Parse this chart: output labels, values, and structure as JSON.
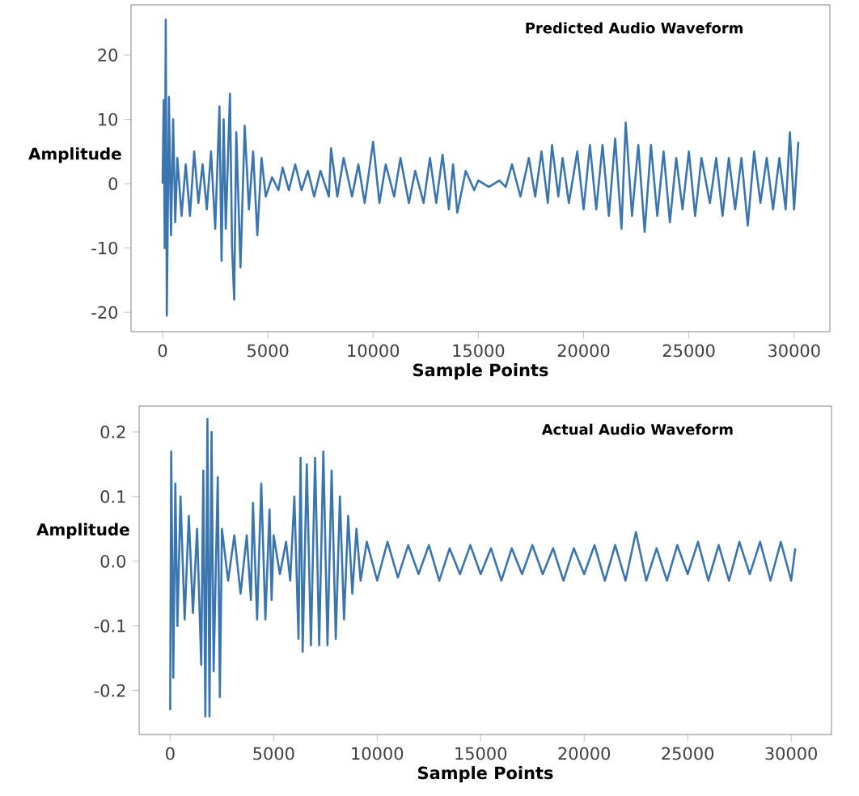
{
  "chart_data": [
    {
      "type": "line",
      "title": "Predicted Audio Waveform",
      "xlabel": "Sample Points",
      "ylabel": "Amplitude",
      "color": "#3a75af",
      "xlim": [
        -1500,
        31700
      ],
      "ylim": [
        -23,
        27.8
      ],
      "xticks": [
        0,
        5000,
        10000,
        15000,
        20000,
        25000,
        30000
      ],
      "yticks": [
        -20,
        -10,
        0,
        10,
        20
      ],
      "x": [
        0,
        50,
        100,
        150,
        200,
        300,
        400,
        500,
        600,
        700,
        900,
        1100,
        1300,
        1500,
        1700,
        1900,
        2100,
        2300,
        2500,
        2700,
        2800,
        2900,
        3000,
        3200,
        3300,
        3400,
        3500,
        3700,
        3900,
        4100,
        4300,
        4500,
        4700,
        4900,
        5200,
        5500,
        5700,
        6000,
        6300,
        6600,
        6900,
        7200,
        7500,
        7900,
        8000,
        8300,
        8600,
        9000,
        9300,
        9600,
        10000,
        10300,
        10600,
        11000,
        11300,
        11700,
        12000,
        12400,
        12700,
        13000,
        13300,
        13600,
        13800,
        14000,
        14400,
        14800,
        15000,
        15500,
        16000,
        16300,
        16600,
        17000,
        17400,
        17700,
        18000,
        18300,
        18500,
        18800,
        19000,
        19300,
        19700,
        20000,
        20300,
        20600,
        20900,
        21200,
        21500,
        21800,
        22000,
        22300,
        22600,
        22900,
        23200,
        23500,
        23800,
        24100,
        24400,
        24700,
        25000,
        25300,
        25600,
        26000,
        26300,
        26600,
        26900,
        27200,
        27500,
        27800,
        28100,
        28400,
        28700,
        29000,
        29300,
        29600,
        29800,
        30000,
        30200
      ],
      "values": [
        0,
        13,
        -10,
        25.5,
        -20.5,
        13.5,
        -8,
        10,
        -6,
        4,
        -5,
        3,
        -5,
        5,
        -3,
        3,
        -4,
        5,
        -7,
        12,
        -12,
        10,
        -7,
        14,
        -10,
        -18,
        8,
        -13,
        9,
        -4,
        5,
        -8,
        4,
        -2,
        1,
        -1,
        2.5,
        -1,
        3,
        -1,
        2,
        -2,
        2,
        -2,
        5.5,
        -2,
        4,
        -2,
        3,
        -3,
        6.5,
        -3,
        3,
        -2,
        4,
        -3,
        2,
        -3,
        4,
        -3,
        4.5,
        -4,
        3,
        -4.5,
        2,
        -1,
        0.5,
        -0.5,
        0.5,
        -0.5,
        3,
        -2,
        4,
        -2,
        5,
        -3,
        6,
        -2,
        4,
        -3,
        5,
        -4,
        6,
        -4,
        6,
        -5,
        7,
        -7,
        9.5,
        -5,
        6,
        -7.5,
        6,
        -5,
        5,
        -6,
        4,
        -4,
        5,
        -5,
        4,
        -3,
        4,
        -5,
        4,
        -4,
        4,
        -6.5,
        5,
        -3,
        4,
        -4,
        4,
        -4,
        8,
        -4,
        6.5
      ]
    },
    {
      "type": "line",
      "title": "Actual Audio Waveform",
      "xlabel": "Sample Points",
      "ylabel": "Amplitude",
      "color": "#3a75af",
      "xlim": [
        -1500,
        31950
      ],
      "ylim": [
        -0.268,
        0.24
      ],
      "xticks": [
        0,
        5000,
        10000,
        15000,
        20000,
        25000,
        30000
      ],
      "yticks": [
        -0.2,
        -0.1,
        {
          "value": 0,
          "label": "0.0"
        },
        0.1,
        0.2
      ],
      "x": [
        0,
        50,
        150,
        250,
        350,
        500,
        700,
        900,
        1100,
        1300,
        1500,
        1600,
        1700,
        1800,
        1900,
        2000,
        2100,
        2300,
        2400,
        2500,
        2800,
        3100,
        3400,
        3700,
        3900,
        4000,
        4200,
        4400,
        4600,
        4800,
        4900,
        5000,
        5300,
        5600,
        5800,
        6000,
        6200,
        6300,
        6400,
        6600,
        6800,
        7000,
        7200,
        7400,
        7600,
        7800,
        8000,
        8200,
        8400,
        8600,
        8800,
        9000,
        9200,
        9500,
        10000,
        10500,
        11000,
        11500,
        12000,
        12500,
        13000,
        13500,
        14000,
        14500,
        15000,
        15500,
        16000,
        16500,
        17000,
        17500,
        18000,
        18500,
        19000,
        19500,
        20000,
        20500,
        21000,
        21500,
        22000,
        22500,
        23000,
        23500,
        24000,
        24500,
        25000,
        25500,
        26000,
        26500,
        27000,
        27500,
        28000,
        28500,
        29000,
        29500,
        30000,
        30200
      ],
      "values": [
        -0.23,
        0.17,
        -0.18,
        0.12,
        -0.1,
        0.1,
        -0.09,
        0.07,
        -0.08,
        0.05,
        -0.16,
        0.14,
        -0.24,
        0.22,
        -0.24,
        0.2,
        -0.17,
        0.13,
        -0.21,
        0.05,
        -0.03,
        0.04,
        -0.05,
        0.04,
        -0.06,
        0.09,
        -0.09,
        0.12,
        -0.09,
        0.08,
        -0.06,
        0.04,
        -0.02,
        0.03,
        -0.03,
        0.1,
        -0.12,
        0.16,
        -0.14,
        0.15,
        -0.13,
        0.16,
        -0.13,
        0.17,
        -0.13,
        0.14,
        -0.12,
        0.1,
        -0.09,
        0.07,
        -0.05,
        0.05,
        -0.03,
        0.03,
        -0.03,
        0.03,
        -0.025,
        0.025,
        -0.02,
        0.025,
        -0.03,
        0.02,
        -0.02,
        0.025,
        -0.02,
        0.02,
        -0.03,
        0.02,
        -0.02,
        0.025,
        -0.02,
        0.02,
        -0.03,
        0.02,
        -0.02,
        0.025,
        -0.03,
        0.025,
        -0.03,
        0.045,
        -0.03,
        0.02,
        -0.03,
        0.025,
        -0.02,
        0.03,
        -0.03,
        0.025,
        -0.03,
        0.03,
        -0.02,
        0.03,
        -0.03,
        0.03,
        -0.03,
        0.02
      ]
    }
  ]
}
